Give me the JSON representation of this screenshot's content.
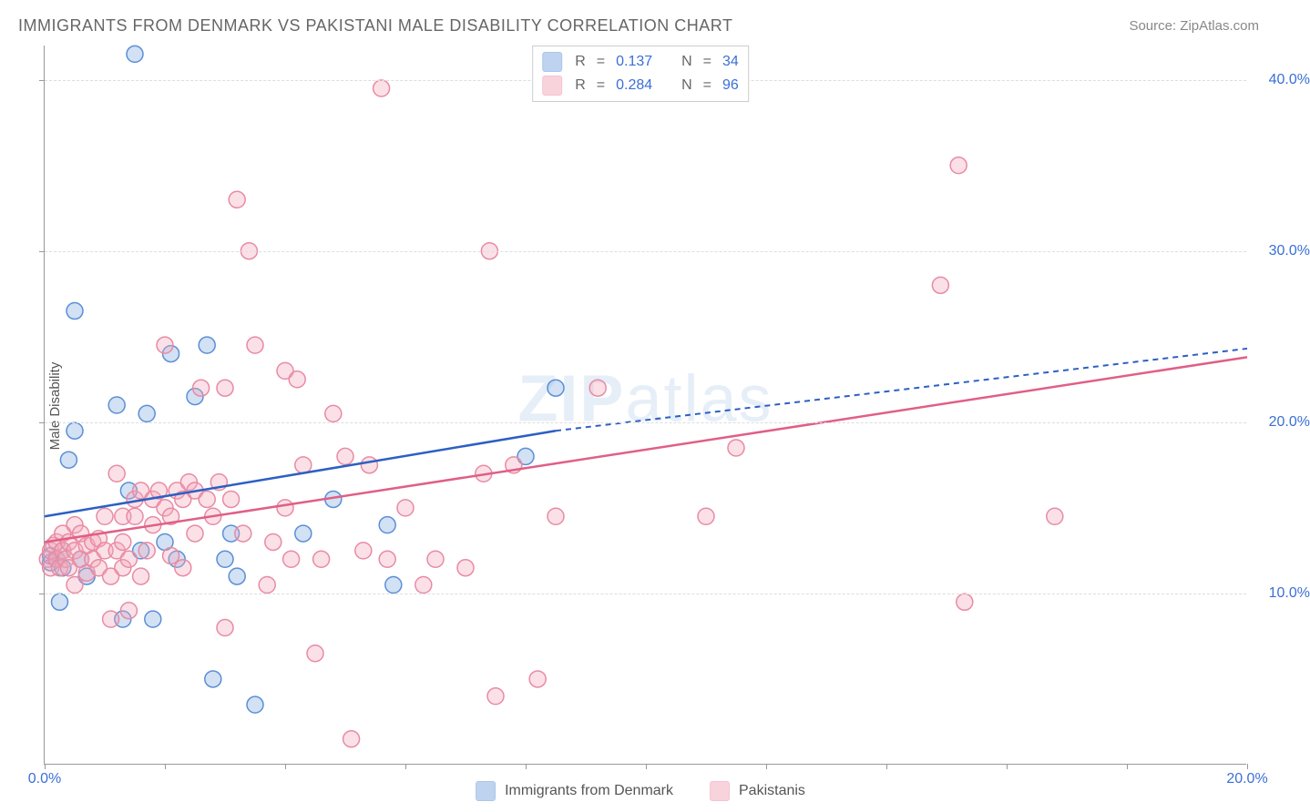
{
  "title": "IMMIGRANTS FROM DENMARK VS PAKISTANI MALE DISABILITY CORRELATION CHART",
  "source": "Source: ZipAtlas.com",
  "y_axis_title": "Male Disability",
  "watermark_prefix": "ZIP",
  "watermark_suffix": "atlas",
  "chart": {
    "type": "scatter",
    "xlim": [
      0,
      20
    ],
    "ylim": [
      0,
      42
    ],
    "xticks": [
      0,
      2,
      4,
      6,
      8,
      10,
      12,
      14,
      16,
      18,
      20
    ],
    "xtick_labels": {
      "0": "0.0%",
      "20": "20.0%"
    },
    "yticks": [
      10,
      20,
      30,
      40
    ],
    "ytick_labels": {
      "10": "10.0%",
      "20": "20.0%",
      "30": "30.0%",
      "40": "40.0%"
    },
    "grid_color": "#dddddd",
    "background_color": "#ffffff",
    "marker_radius": 9,
    "marker_stroke_width": 1.5,
    "marker_fill_opacity": 0.35,
    "series": [
      {
        "name": "Immigrants from Denmark",
        "color": "#7fa8e0",
        "stroke": "#5b8fd6",
        "r_value": "0.137",
        "n_value": "34",
        "trend": {
          "x1": 0,
          "y1": 14.5,
          "x2": 8.5,
          "y2": 19.5,
          "extend_x2": 20,
          "extend_y2": 24.3,
          "stroke": "#2c5fc4",
          "width": 2.5,
          "dash": "6,5"
        },
        "points": [
          [
            0.1,
            11.8
          ],
          [
            0.1,
            12.2
          ],
          [
            0.2,
            12.0
          ],
          [
            0.25,
            9.5
          ],
          [
            0.3,
            11.5
          ],
          [
            0.3,
            12.5
          ],
          [
            0.4,
            17.8
          ],
          [
            0.5,
            19.5
          ],
          [
            0.5,
            26.5
          ],
          [
            0.6,
            12.0
          ],
          [
            0.7,
            11.0
          ],
          [
            1.2,
            21.0
          ],
          [
            1.3,
            8.5
          ],
          [
            1.4,
            16.0
          ],
          [
            1.5,
            41.5
          ],
          [
            1.6,
            12.5
          ],
          [
            1.7,
            20.5
          ],
          [
            1.8,
            8.5
          ],
          [
            2.0,
            13.0
          ],
          [
            2.1,
            24.0
          ],
          [
            2.2,
            12.0
          ],
          [
            2.5,
            21.5
          ],
          [
            2.7,
            24.5
          ],
          [
            2.8,
            5.0
          ],
          [
            3.0,
            12.0
          ],
          [
            3.1,
            13.5
          ],
          [
            3.2,
            11.0
          ],
          [
            3.5,
            3.5
          ],
          [
            4.3,
            13.5
          ],
          [
            4.8,
            15.5
          ],
          [
            5.7,
            14.0
          ],
          [
            5.8,
            10.5
          ],
          [
            8.0,
            18.0
          ],
          [
            8.5,
            22.0
          ]
        ]
      },
      {
        "name": "Pakistanis",
        "color": "#f4a8bb",
        "stroke": "#e88ba3",
        "r_value": "0.284",
        "n_value": "96",
        "trend": {
          "x1": 0,
          "y1": 13.0,
          "x2": 20,
          "y2": 23.8,
          "stroke": "#e05f86",
          "width": 2.5
        },
        "points": [
          [
            0.05,
            12.0
          ],
          [
            0.1,
            11.5
          ],
          [
            0.1,
            12.5
          ],
          [
            0.15,
            12.8
          ],
          [
            0.2,
            12.0
          ],
          [
            0.2,
            13.0
          ],
          [
            0.25,
            11.5
          ],
          [
            0.3,
            12.5
          ],
          [
            0.3,
            13.5
          ],
          [
            0.35,
            12.0
          ],
          [
            0.4,
            11.5
          ],
          [
            0.4,
            13.0
          ],
          [
            0.5,
            10.5
          ],
          [
            0.5,
            12.5
          ],
          [
            0.5,
            14.0
          ],
          [
            0.6,
            12.0
          ],
          [
            0.6,
            13.5
          ],
          [
            0.7,
            11.2
          ],
          [
            0.7,
            12.8
          ],
          [
            0.8,
            12.0
          ],
          [
            0.8,
            13.0
          ],
          [
            0.9,
            11.5
          ],
          [
            0.9,
            13.2
          ],
          [
            1.0,
            12.5
          ],
          [
            1.0,
            14.5
          ],
          [
            1.1,
            8.5
          ],
          [
            1.1,
            11.0
          ],
          [
            1.2,
            12.5
          ],
          [
            1.2,
            17.0
          ],
          [
            1.3,
            11.5
          ],
          [
            1.3,
            14.5
          ],
          [
            1.4,
            9.0
          ],
          [
            1.4,
            12.0
          ],
          [
            1.5,
            14.5
          ],
          [
            1.5,
            15.5
          ],
          [
            1.6,
            11.0
          ],
          [
            1.6,
            16.0
          ],
          [
            1.7,
            12.5
          ],
          [
            1.8,
            14.0
          ],
          [
            1.8,
            15.5
          ],
          [
            1.9,
            16.0
          ],
          [
            2.0,
            15.0
          ],
          [
            2.0,
            24.5
          ],
          [
            2.1,
            14.5
          ],
          [
            2.2,
            16.0
          ],
          [
            2.3,
            11.5
          ],
          [
            2.3,
            15.5
          ],
          [
            2.4,
            16.5
          ],
          [
            2.5,
            13.5
          ],
          [
            2.5,
            16.0
          ],
          [
            2.6,
            22.0
          ],
          [
            2.7,
            15.5
          ],
          [
            2.8,
            14.5
          ],
          [
            2.9,
            16.5
          ],
          [
            3.0,
            8.0
          ],
          [
            3.0,
            22.0
          ],
          [
            3.1,
            15.5
          ],
          [
            3.2,
            33.0
          ],
          [
            3.3,
            13.5
          ],
          [
            3.4,
            30.0
          ],
          [
            3.5,
            24.5
          ],
          [
            3.7,
            10.5
          ],
          [
            3.8,
            13.0
          ],
          [
            4.0,
            15.0
          ],
          [
            4.0,
            23.0
          ],
          [
            4.1,
            12.0
          ],
          [
            4.2,
            22.5
          ],
          [
            4.3,
            17.5
          ],
          [
            4.5,
            6.5
          ],
          [
            4.6,
            12.0
          ],
          [
            4.8,
            20.5
          ],
          [
            5.0,
            18.0
          ],
          [
            5.1,
            1.5
          ],
          [
            5.3,
            12.5
          ],
          [
            5.4,
            17.5
          ],
          [
            5.6,
            39.5
          ],
          [
            5.7,
            12.0
          ],
          [
            6.0,
            15.0
          ],
          [
            6.3,
            10.5
          ],
          [
            6.5,
            12.0
          ],
          [
            7.0,
            11.5
          ],
          [
            7.3,
            17.0
          ],
          [
            7.4,
            30.0
          ],
          [
            7.5,
            4.0
          ],
          [
            7.8,
            17.5
          ],
          [
            8.2,
            5.0
          ],
          [
            8.5,
            14.5
          ],
          [
            9.2,
            22.0
          ],
          [
            11.0,
            14.5
          ],
          [
            11.5,
            18.5
          ],
          [
            14.9,
            28.0
          ],
          [
            15.2,
            35.0
          ],
          [
            15.3,
            9.5
          ],
          [
            16.8,
            14.5
          ],
          [
            1.3,
            13.0
          ],
          [
            2.1,
            12.2
          ]
        ]
      }
    ]
  },
  "legend_top": {
    "r_label": "R",
    "n_label": "N",
    "eq": "="
  },
  "legend_bottom_swatch_size": 22
}
